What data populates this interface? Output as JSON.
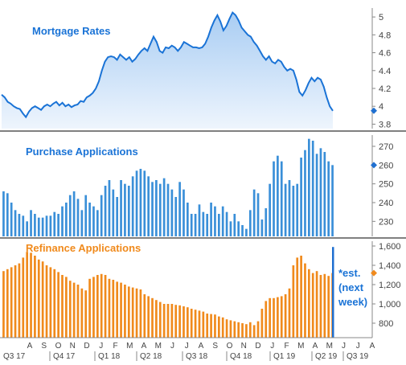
{
  "colors": {
    "rate_line": "#1a73d6",
    "rate_fill_top": "#a9cdf3",
    "rate_fill_bottom": "#eef5fd",
    "purchase_bar": "#3a8fd8",
    "refi_bar": "#f08a1c",
    "marker_blue": "#1f6fd0",
    "marker_orange": "#f08a1c",
    "divider": "#000000",
    "tick_text": "#444444"
  },
  "panels": {
    "rates": {
      "title": "Mortgage Rates",
      "title_color": "#1a73d6"
    },
    "purchase": {
      "title": "Purchase Applications",
      "title_color": "#1a73d6"
    },
    "refi": {
      "title": "Refinance Applications",
      "title_color": "#f08a1c"
    }
  },
  "estimate_note": [
    "*est.",
    "(next",
    "week)"
  ],
  "x_axis": {
    "month_labels": [
      "A",
      "S",
      "O",
      "N",
      "D",
      "J",
      "F",
      "M",
      "A",
      "M",
      "J",
      "J",
      "A",
      "S",
      "O",
      "N",
      "D",
      "J",
      "F",
      "M",
      "A",
      "M",
      "J",
      "J",
      "A"
    ],
    "quarter_labels": [
      "Q3 17",
      "Q4 17",
      "Q1 18",
      "Q2 18",
      "Q3 18",
      "Q4 18",
      "Q1 19",
      "Q2 19",
      "Q3 19"
    ]
  },
  "chart_data": [
    {
      "type": "area",
      "title": "Mortgage Rates",
      "ylim": [
        3.75,
        5.1
      ],
      "yticks": [
        "5",
        "4.8",
        "4.6",
        "4.4",
        "4.2",
        "4",
        "3.8"
      ],
      "current_marker": 3.95,
      "series": [
        {
          "name": "Mortgage Rates",
          "values": [
            4.13,
            4.1,
            4.05,
            4.03,
            4.0,
            3.98,
            3.97,
            3.92,
            3.88,
            3.94,
            3.98,
            4.0,
            3.98,
            3.96,
            4.0,
            4.02,
            4.0,
            4.03,
            4.05,
            4.01,
            4.04,
            4.0,
            4.02,
            3.99,
            4.01,
            4.02,
            4.06,
            4.05,
            4.1,
            4.12,
            4.15,
            4.2,
            4.28,
            4.4,
            4.5,
            4.55,
            4.56,
            4.55,
            4.52,
            4.58,
            4.55,
            4.52,
            4.55,
            4.5,
            4.53,
            4.58,
            4.62,
            4.65,
            4.62,
            4.7,
            4.78,
            4.72,
            4.62,
            4.6,
            4.66,
            4.65,
            4.68,
            4.66,
            4.62,
            4.66,
            4.72,
            4.7,
            4.68,
            4.66,
            4.66,
            4.65,
            4.66,
            4.7,
            4.78,
            4.88,
            4.96,
            5.02,
            4.95,
            4.85,
            4.9,
            4.98,
            5.05,
            5.02,
            4.96,
            4.88,
            4.84,
            4.8,
            4.78,
            4.72,
            4.68,
            4.62,
            4.56,
            4.52,
            4.56,
            4.5,
            4.48,
            4.52,
            4.5,
            4.44,
            4.4,
            4.42,
            4.4,
            4.3,
            4.16,
            4.12,
            4.18,
            4.26,
            4.32,
            4.28,
            4.32,
            4.3,
            4.22,
            4.1,
            4.0,
            3.95
          ]
        }
      ]
    },
    {
      "type": "bar",
      "title": "Purchase Applications",
      "ylim": [
        222,
        276
      ],
      "yticks": [
        "270",
        "260",
        "250",
        "240",
        "230"
      ],
      "current_marker": 260,
      "series": [
        {
          "name": "Purchase Applications",
          "values": [
            246,
            245,
            240,
            236,
            234,
            233,
            230,
            236,
            234,
            232,
            232,
            233,
            233,
            235,
            234,
            238,
            240,
            244,
            246,
            242,
            236,
            244,
            240,
            238,
            236,
            244,
            249,
            252,
            247,
            243,
            252,
            250,
            249,
            254,
            257,
            258,
            257,
            254,
            251,
            252,
            250,
            253,
            250,
            247,
            243,
            251,
            247,
            240,
            234,
            234,
            239,
            235,
            234,
            240,
            238,
            234,
            238,
            235,
            230,
            234,
            230,
            228,
            226,
            236,
            247,
            245,
            231,
            237,
            250,
            262,
            265,
            262,
            250,
            252,
            249,
            250,
            264,
            268,
            274,
            273,
            266,
            269,
            267,
            262,
            260
          ]
        }
      ]
    },
    {
      "type": "bar",
      "title": "Refinance Applications",
      "ylim": [
        650,
        1650
      ],
      "yticks": [
        "1,600",
        "1,400",
        "1,200",
        "1,000",
        "800"
      ],
      "current_marker": 1320,
      "series": [
        {
          "name": "Refinance Applications",
          "values": [
            1340,
            1360,
            1380,
            1400,
            1420,
            1480,
            1540,
            1530,
            1500,
            1460,
            1440,
            1400,
            1380,
            1360,
            1330,
            1300,
            1280,
            1240,
            1220,
            1200,
            1160,
            1140,
            1260,
            1280,
            1300,
            1310,
            1300,
            1260,
            1250,
            1230,
            1220,
            1200,
            1180,
            1170,
            1160,
            1150,
            1100,
            1080,
            1060,
            1040,
            1020,
            1000,
            1000,
            1000,
            990,
            985,
            975,
            965,
            950,
            940,
            930,
            920,
            900,
            895,
            890,
            870,
            860,
            840,
            830,
            820,
            810,
            800,
            790,
            810,
            780,
            820,
            950,
            1030,
            1060,
            1060,
            1070,
            1080,
            1100,
            1160,
            1400,
            1480,
            1500,
            1420,
            1360,
            1320,
            1340,
            1300,
            1310,
            1290,
            1320
          ]
        }
      ]
    }
  ]
}
